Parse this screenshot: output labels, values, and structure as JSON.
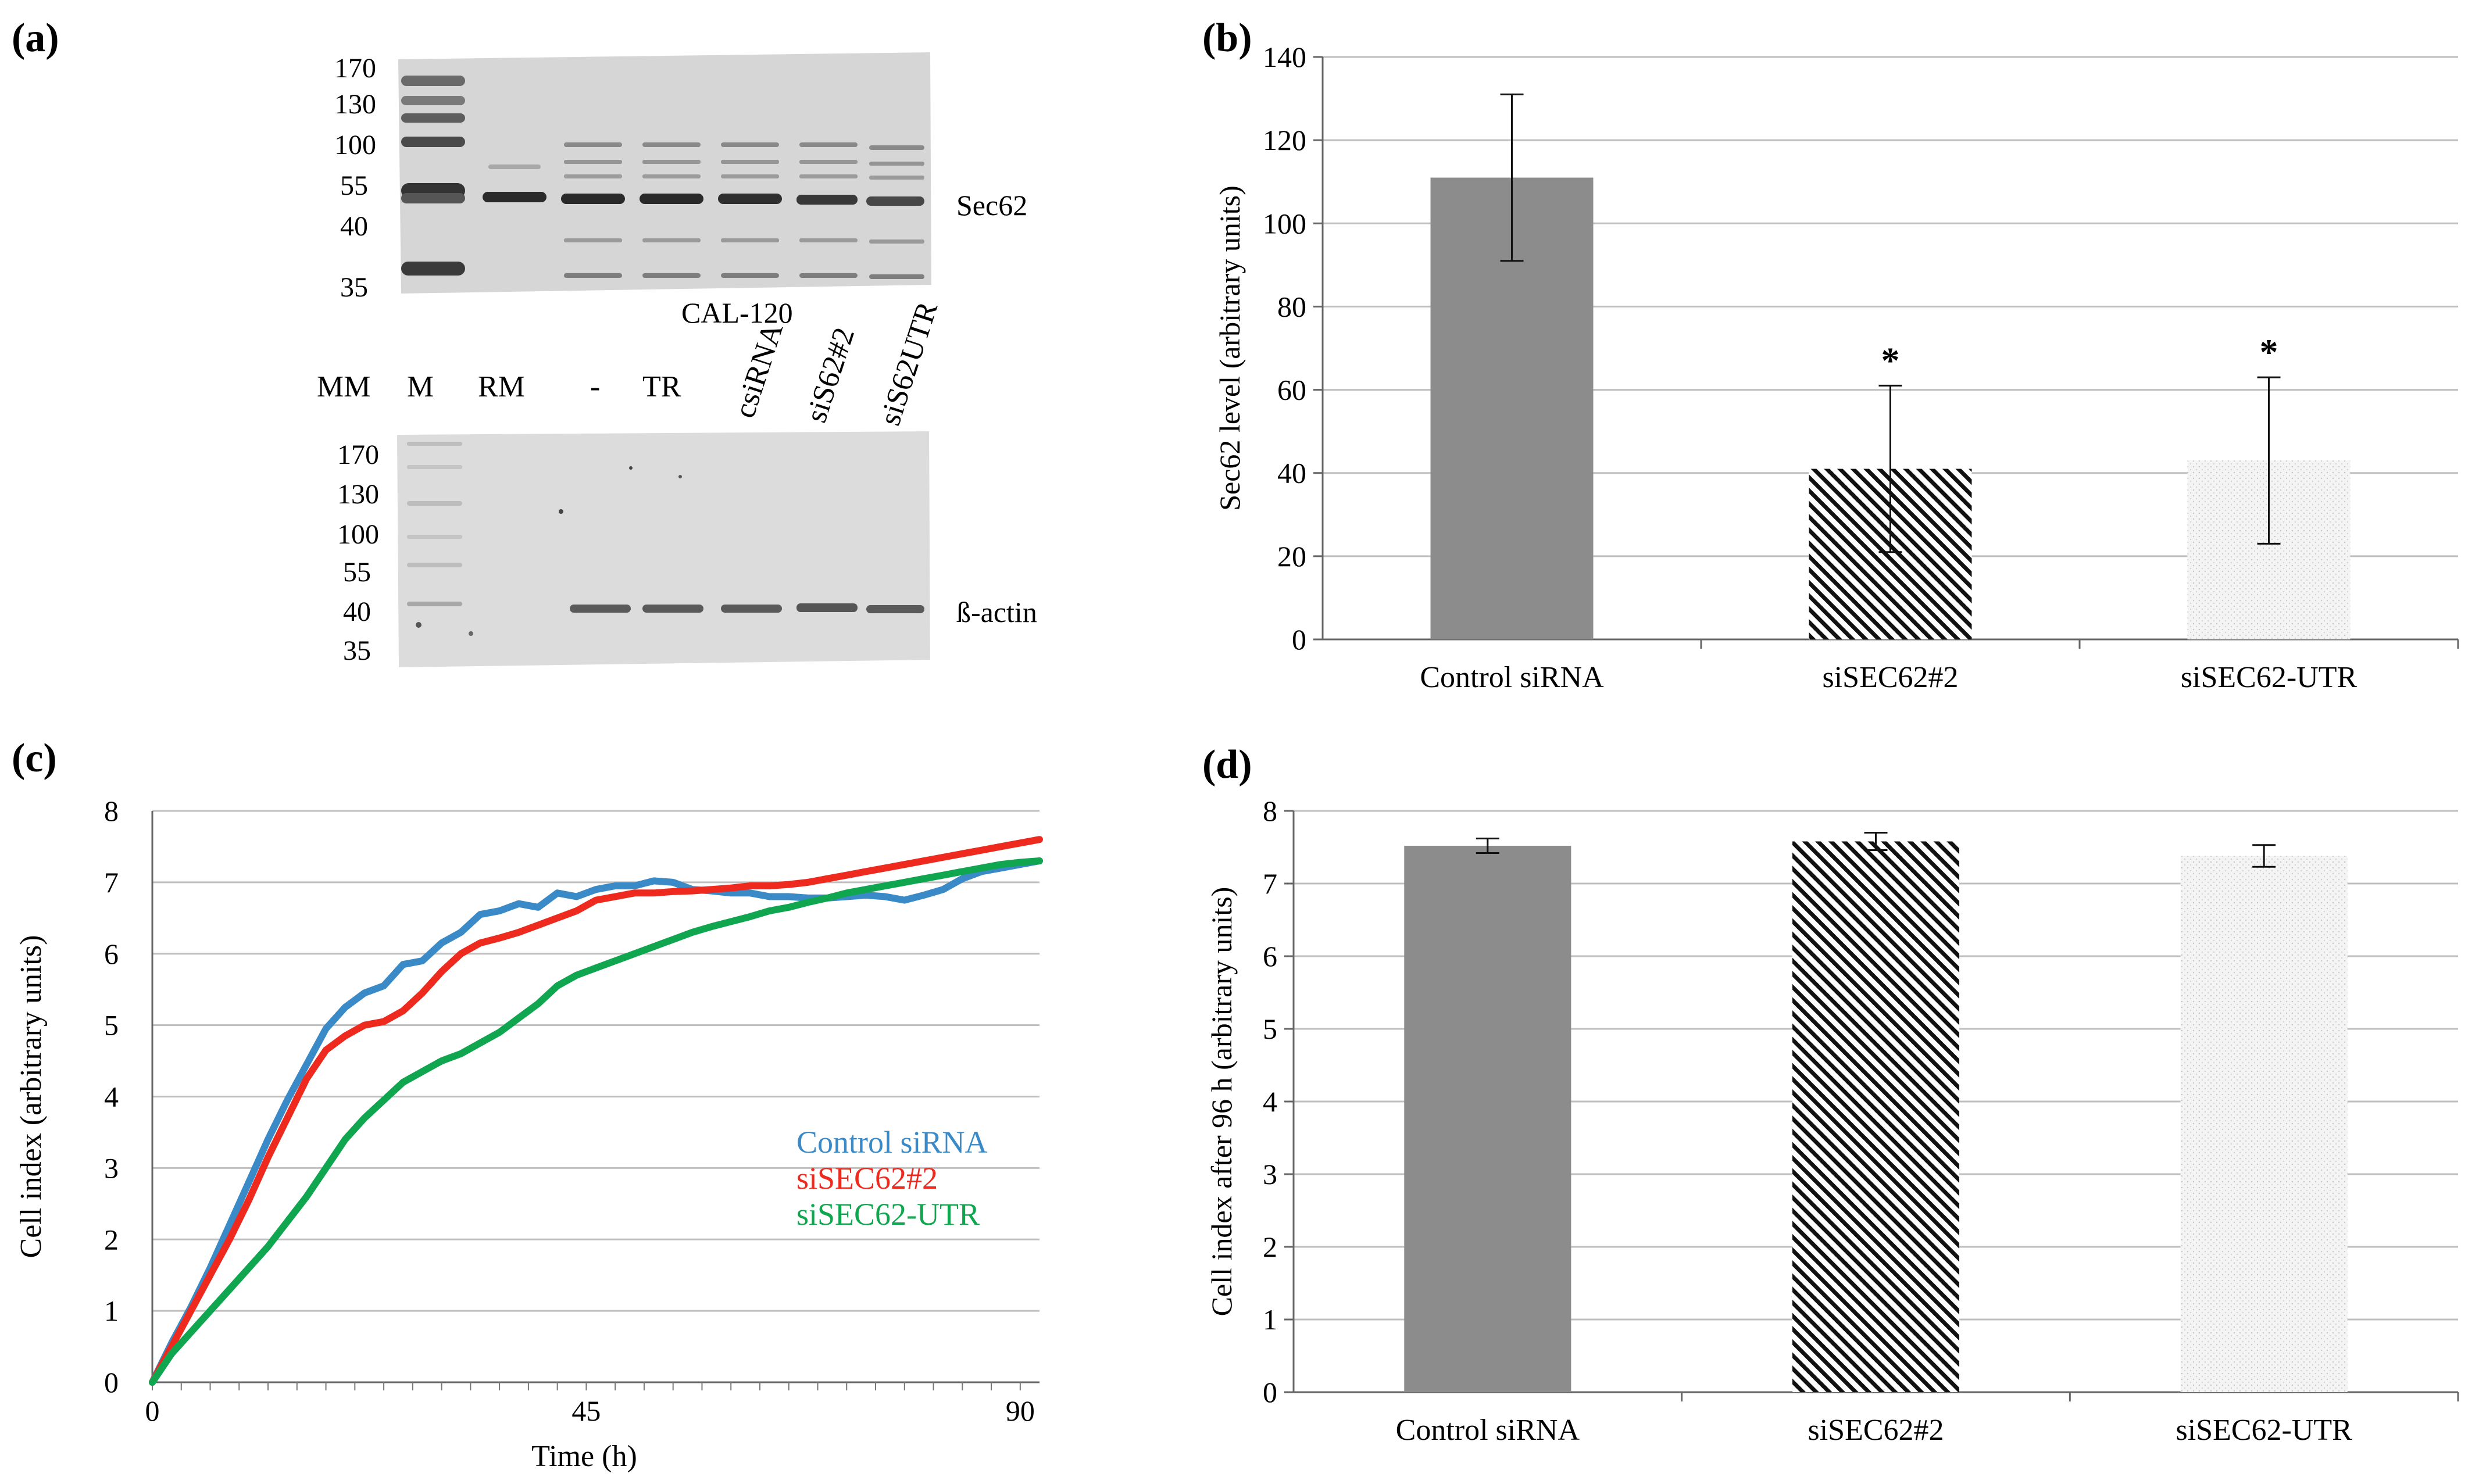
{
  "panels": {
    "a": {
      "label": "(a)",
      "blot_top": {
        "mw_markers": [
          "170",
          "130",
          "100",
          "55",
          "40",
          "35"
        ],
        "protein": "Sec62"
      },
      "cell_line": "CAL-120",
      "lanes": [
        "MM",
        "M",
        "RM",
        "-",
        "TR",
        "csiRNA",
        "siS62#2",
        "siS62UTR"
      ],
      "blot_bottom": {
        "mw_markers": [
          "170",
          "130",
          "100",
          "55",
          "40",
          "35"
        ],
        "protein": "ß-actin"
      }
    },
    "b": {
      "label": "(b)"
    },
    "c": {
      "label": "(c)"
    },
    "d": {
      "label": "(d)"
    }
  },
  "colors": {
    "control": "#3a8ac7",
    "si62_2": "#ee2a1f",
    "si62_utr": "#10a650",
    "bar_gray": "#8c8c8c",
    "grid": "#bfbfbf"
  },
  "chart_data": [
    {
      "panel": "b",
      "type": "bar",
      "categories": [
        "Control siRNA",
        "siSEC62#2",
        "siSEC62-UTR"
      ],
      "values": [
        111,
        41,
        43
      ],
      "errors": [
        20,
        20,
        20
      ],
      "significance": [
        "",
        "*",
        "*"
      ],
      "patterns": [
        "solid",
        "hatch",
        "dots"
      ],
      "ylabel": "Sec62 level (arbitrary units)",
      "ylim": [
        0,
        140
      ],
      "yticks": [
        "0",
        "20",
        "40",
        "60",
        "80",
        "100",
        "120",
        "140"
      ],
      "grid": true
    },
    {
      "panel": "c",
      "type": "line",
      "xlabel": "Time (h)",
      "ylabel": "Cell index (arbitrary units)",
      "xlim": [
        0,
        92
      ],
      "ylim": [
        0,
        8
      ],
      "xticks": [
        "0",
        "45",
        "90"
      ],
      "yticks": [
        "0",
        "1",
        "2",
        "3",
        "4",
        "5",
        "6",
        "7",
        "8"
      ],
      "grid": true,
      "series": [
        {
          "name": "Control siRNA",
          "color": "#3a8ac7",
          "x": [
            0,
            2,
            4,
            6,
            8,
            10,
            12,
            14,
            16,
            18,
            20,
            22,
            24,
            26,
            28,
            30,
            32,
            34,
            36,
            38,
            40,
            42,
            44,
            46,
            48,
            50,
            52,
            54,
            56,
            58,
            60,
            62,
            64,
            66,
            68,
            70,
            72,
            74,
            76,
            78,
            80,
            82,
            84,
            86,
            88,
            90,
            92
          ],
          "y": [
            0,
            0.55,
            1.05,
            1.6,
            2.2,
            2.8,
            3.4,
            3.95,
            4.45,
            4.95,
            5.25,
            5.45,
            5.55,
            5.85,
            5.9,
            6.15,
            6.3,
            6.55,
            6.6,
            6.7,
            6.65,
            6.85,
            6.8,
            6.9,
            6.95,
            6.95,
            7.02,
            7.0,
            6.9,
            6.88,
            6.85,
            6.85,
            6.8,
            6.8,
            6.78,
            6.78,
            6.8,
            6.82,
            6.8,
            6.75,
            6.82,
            6.9,
            7.05,
            7.15,
            7.2,
            7.25,
            7.3
          ]
        },
        {
          "name": "siSEC62#2",
          "color": "#ee2a1f",
          "x": [
            0,
            2,
            4,
            6,
            8,
            10,
            12,
            14,
            16,
            18,
            20,
            22,
            24,
            26,
            28,
            30,
            32,
            34,
            36,
            38,
            40,
            42,
            44,
            46,
            48,
            50,
            52,
            54,
            56,
            58,
            60,
            62,
            64,
            66,
            68,
            70,
            72,
            74,
            76,
            78,
            80,
            82,
            84,
            86,
            88,
            90,
            92
          ],
          "y": [
            0,
            0.5,
            1.0,
            1.5,
            2.0,
            2.55,
            3.15,
            3.7,
            4.25,
            4.65,
            4.85,
            5.0,
            5.05,
            5.2,
            5.45,
            5.75,
            6.0,
            6.15,
            6.22,
            6.3,
            6.4,
            6.5,
            6.6,
            6.75,
            6.8,
            6.85,
            6.85,
            6.87,
            6.88,
            6.9,
            6.92,
            6.95,
            6.95,
            6.97,
            7.0,
            7.05,
            7.1,
            7.15,
            7.2,
            7.25,
            7.3,
            7.35,
            7.4,
            7.45,
            7.5,
            7.55,
            7.6
          ]
        },
        {
          "name": "siSEC62-UTR",
          "color": "#10a650",
          "x": [
            0,
            2,
            4,
            6,
            8,
            10,
            12,
            14,
            16,
            18,
            20,
            22,
            24,
            26,
            28,
            30,
            32,
            34,
            36,
            38,
            40,
            42,
            44,
            46,
            48,
            50,
            52,
            54,
            56,
            58,
            60,
            62,
            64,
            66,
            68,
            70,
            72,
            74,
            76,
            78,
            80,
            82,
            84,
            86,
            88,
            90,
            92
          ],
          "y": [
            0,
            0.4,
            0.7,
            1.0,
            1.3,
            1.6,
            1.9,
            2.25,
            2.6,
            3.0,
            3.4,
            3.7,
            3.95,
            4.2,
            4.35,
            4.5,
            4.6,
            4.75,
            4.9,
            5.1,
            5.3,
            5.55,
            5.7,
            5.8,
            5.9,
            6.0,
            6.1,
            6.2,
            6.3,
            6.38,
            6.45,
            6.52,
            6.6,
            6.65,
            6.72,
            6.78,
            6.85,
            6.9,
            6.95,
            7.0,
            7.05,
            7.1,
            7.15,
            7.2,
            7.25,
            7.28,
            7.3
          ]
        }
      ]
    },
    {
      "panel": "d",
      "type": "bar",
      "categories": [
        "Control siRNA",
        "siSEC62#2",
        "siSEC62-UTR"
      ],
      "values": [
        7.52,
        7.58,
        7.38
      ],
      "errors": [
        0.1,
        0.12,
        0.15
      ],
      "patterns": [
        "solid",
        "hatch",
        "dots"
      ],
      "ylabel": "Cell index after 96 h (arbitrary units)",
      "ylim": [
        0,
        8
      ],
      "yticks": [
        "0",
        "1",
        "2",
        "3",
        "4",
        "5",
        "6",
        "7",
        "8"
      ],
      "grid": true
    }
  ]
}
